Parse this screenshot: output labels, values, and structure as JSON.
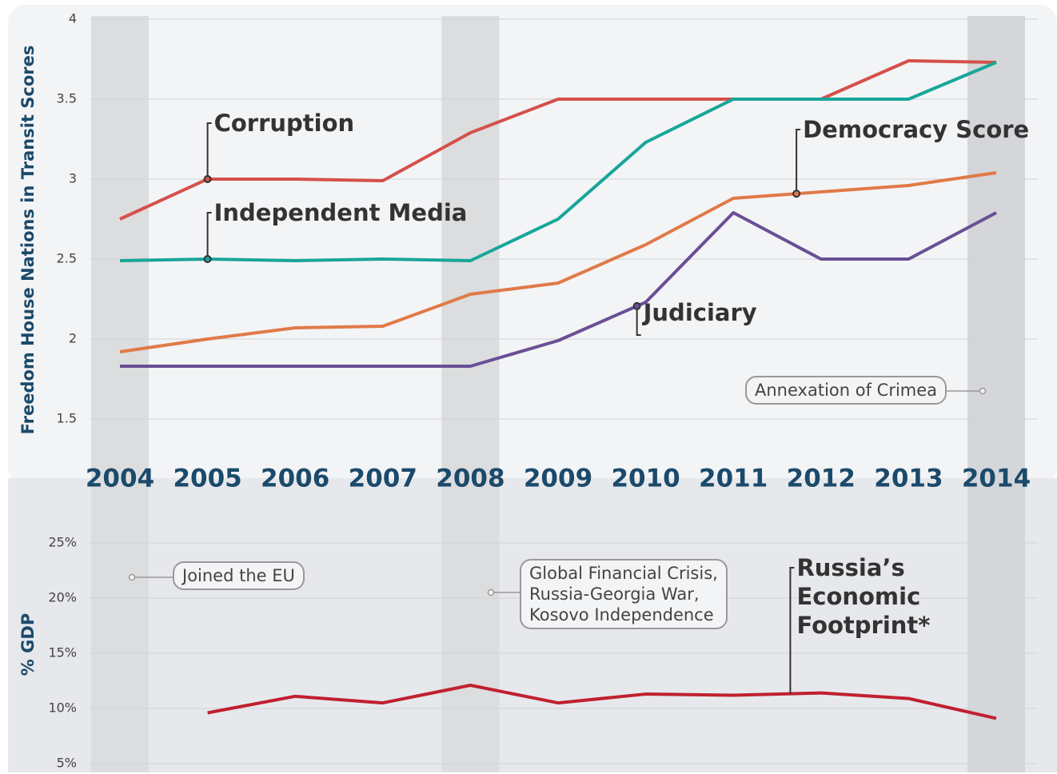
{
  "chart_data": [
    {
      "type": "line",
      "y_label": "Freedom House Nations in Transit Scores",
      "categories": [
        "2004",
        "2005",
        "2006",
        "2007",
        "2008",
        "2009",
        "2010",
        "2011",
        "2012",
        "2013",
        "2014"
      ],
      "ylim": [
        1.5,
        4
      ],
      "yticks": [
        1.5,
        2,
        2.5,
        3,
        3.5,
        4
      ],
      "grid": true,
      "shaded_categories": [
        0,
        4,
        10
      ],
      "series": [
        {
          "name": "Corruption",
          "color": "#d5504b",
          "values": [
            2.75,
            3.0,
            3.0,
            2.99,
            3.29,
            3.5,
            3.5,
            3.5,
            3.5,
            3.74,
            3.73
          ]
        },
        {
          "name": "Independent Media",
          "color": "#17a69a",
          "values": [
            2.49,
            2.5,
            2.49,
            2.5,
            2.49,
            2.75,
            3.23,
            3.5,
            3.5,
            3.5,
            3.73
          ]
        },
        {
          "name": "Democracy Score",
          "color": "#e07a47",
          "values": [
            1.92,
            2.0,
            2.07,
            2.08,
            2.28,
            2.35,
            2.59,
            2.88,
            2.92,
            2.96,
            3.04
          ]
        },
        {
          "name": "Judiciary",
          "color": "#6a4f95",
          "values": [
            1.83,
            1.83,
            1.83,
            1.83,
            1.83,
            1.99,
            2.23,
            2.79,
            2.5,
            2.5,
            2.79
          ]
        }
      ],
      "annotations": [
        {
          "lines": [
            "Annexation of Crimea"
          ]
        }
      ]
    },
    {
      "type": "line",
      "y_label": "% GDP",
      "ylim": [
        5,
        25
      ],
      "yticks": [
        {
          "value": 5,
          "label": "5%"
        },
        {
          "value": 10,
          "label": "10%"
        },
        {
          "value": 15,
          "label": "15%"
        },
        {
          "value": 20,
          "label": "20%"
        },
        {
          "value": 25,
          "label": "25%"
        }
      ],
      "grid": true,
      "series": [
        {
          "name": "Russia’s Economic Footprint*",
          "color": "#c0202f",
          "values": [
            null,
            9.6,
            11.1,
            10.5,
            12.1,
            10.5,
            11.3,
            11.2,
            11.4,
            10.9,
            9.1
          ]
        }
      ],
      "annotations": [
        {
          "lines": [
            "Joined the EU"
          ]
        },
        {
          "lines": [
            "Global Financial Crisis,",
            "Russia-Georgia War,",
            "Kosovo Independence"
          ]
        }
      ]
    }
  ]
}
